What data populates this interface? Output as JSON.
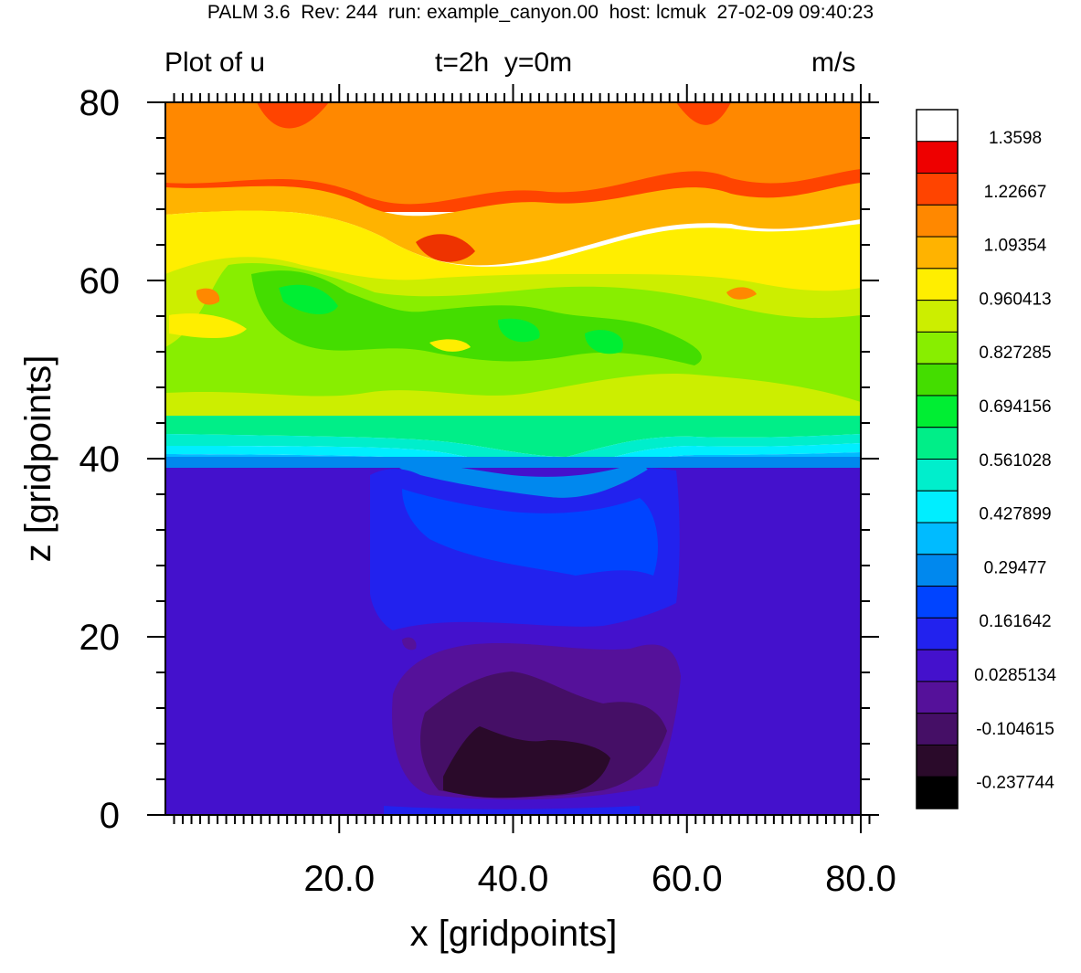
{
  "header": "PALM 3.6  Rev: 244  run: example_canyon.00  host: lcmuk  27-02-09 09:40:23",
  "plot_title_left": "Plot of u",
  "plot_title_center": "t=2h  y=0m",
  "plot_title_right": "m/s",
  "chart_data": {
    "type": "heatmap",
    "xlabel": "x [gridpoints]",
    "ylabel": "z [gridpoints]",
    "xlim": [
      0,
      80
    ],
    "ylim": [
      0,
      80
    ],
    "x_ticks": [
      "20.0",
      "40.0",
      "60.0",
      "80.0"
    ],
    "x_tick_values": [
      20,
      40,
      60,
      80
    ],
    "y_ticks": [
      "0",
      "20",
      "40",
      "60",
      "80"
    ],
    "y_tick_values": [
      0,
      20,
      40,
      60,
      80
    ],
    "grid": false,
    "legend_position": "right",
    "colorbar": {
      "labels": [
        "1.3598",
        "1.22667",
        "1.09354",
        "0.960413",
        "0.827285",
        "0.694156",
        "0.561028",
        "0.427899",
        "0.29477",
        "0.161642",
        "0.0285134",
        "-0.104615",
        "-0.237744"
      ],
      "colors": [
        "#ffffff",
        "#ee0000",
        "#ff4400",
        "#ff8800",
        "#ffb300",
        "#ffee00",
        "#ccee00",
        "#88ee00",
        "#44dd00",
        "#00ee33",
        "#00ee88",
        "#00eecc",
        "#00eeff",
        "#00bbff",
        "#0088ee",
        "#0044ff",
        "#2222ee",
        "#4411cc",
        "#55119a",
        "#450f66",
        "#2a0a2a",
        "#000000"
      ]
    },
    "canyon": {
      "x_range": [
        25,
        60
      ],
      "z_top": 40
    },
    "field_description_levels_by_height": [
      {
        "z_range": [
          0,
          40
        ],
        "outside_canyon_value": 0.03
      },
      {
        "z_range": [
          40,
          46
        ],
        "value_range": [
          0.3,
          0.8
        ]
      },
      {
        "z_range": [
          46,
          66
        ],
        "value_range": [
          0.75,
          1.0
        ]
      },
      {
        "z_range": [
          66,
          80
        ],
        "value_range": [
          1.05,
          1.3
        ]
      }
    ]
  }
}
